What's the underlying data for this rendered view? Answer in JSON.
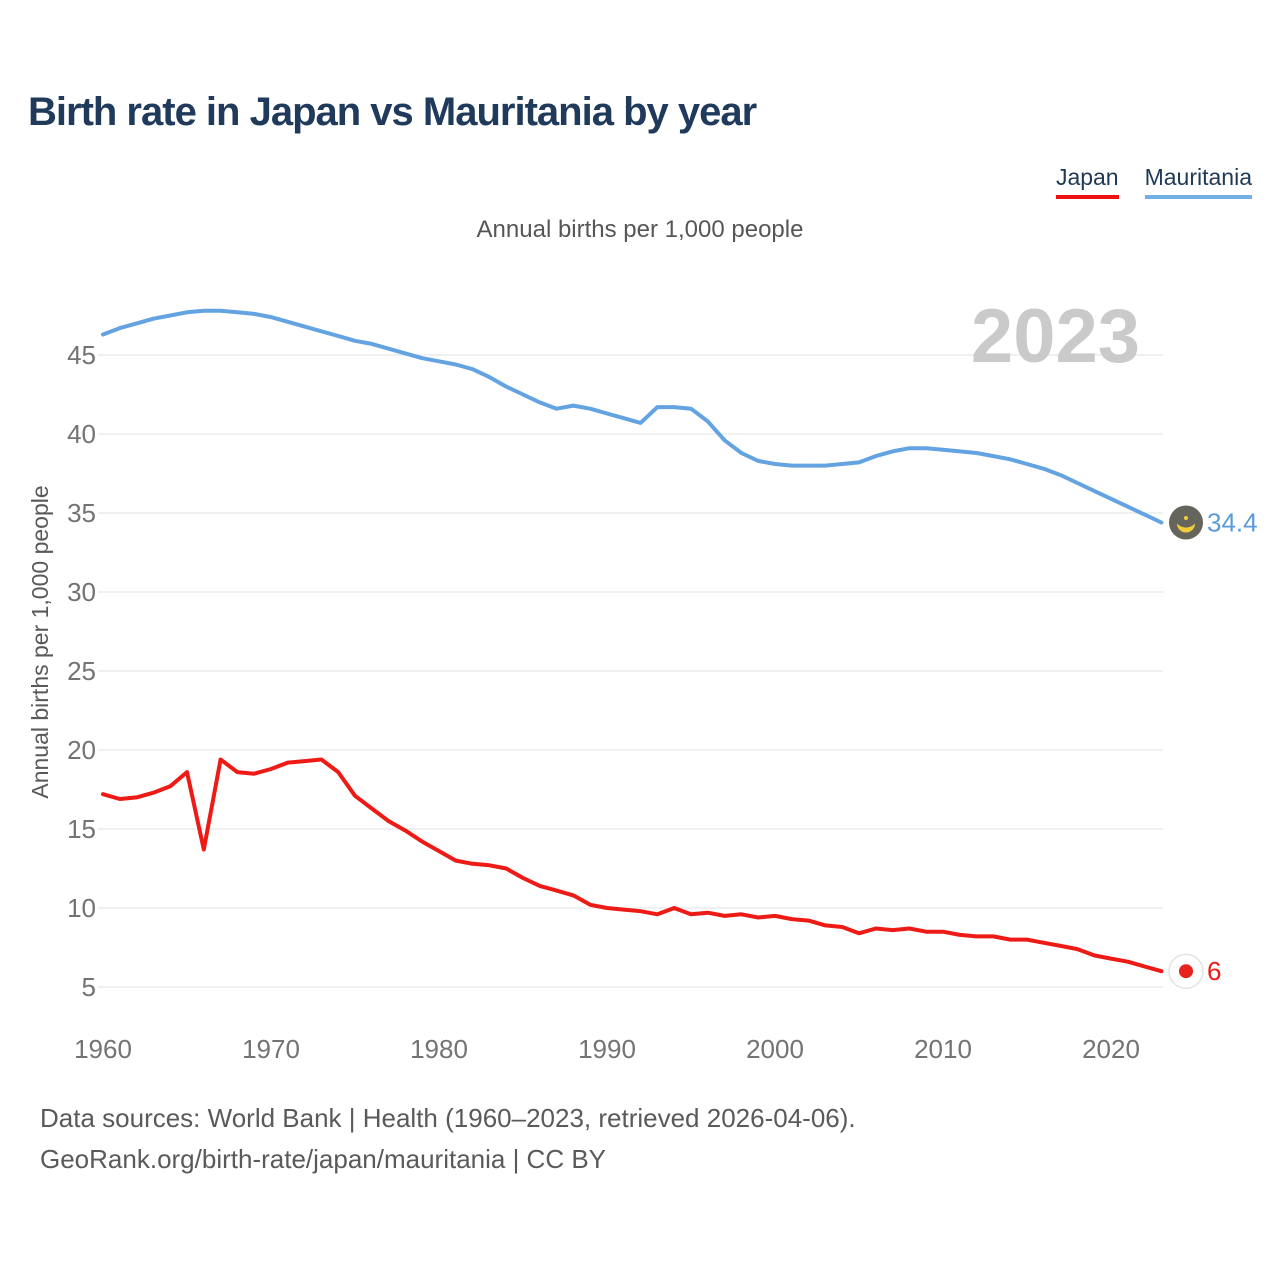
{
  "header": {
    "title": "Birth rate in Japan vs Mauritania by year",
    "subtitle": "Annual births per 1,000 people"
  },
  "legend": {
    "items": [
      {
        "label": "Japan",
        "underline_color": "#ee1111"
      },
      {
        "label": "Mauritania",
        "underline_color": "#74b0e6"
      }
    ]
  },
  "footer": {
    "line1": "Data sources: World Bank | Health (1960–2023, retrieved 2026-04-06).",
    "line2": "GeoRank.org/birth-rate/japan/mauritania | CC BY"
  },
  "chart_data": {
    "type": "line",
    "title": "Birth rate in Japan vs Mauritania by year",
    "subtitle": "Annual births per 1,000 people",
    "ylabel": "Annual births per 1,000 people",
    "watermark_year": "2023",
    "grid": "horizontal",
    "legend_position": "top-right",
    "x_ticks": [
      1960,
      1970,
      1980,
      1990,
      2000,
      2010,
      2020
    ],
    "y_ticks": [
      5,
      10,
      15,
      20,
      25,
      30,
      35,
      40,
      45
    ],
    "xlim": [
      1960,
      2023
    ],
    "ylim": [
      3.5,
      48.5
    ],
    "years": [
      1960,
      1961,
      1962,
      1963,
      1964,
      1965,
      1966,
      1967,
      1968,
      1969,
      1970,
      1971,
      1972,
      1973,
      1974,
      1975,
      1976,
      1977,
      1978,
      1979,
      1980,
      1981,
      1982,
      1983,
      1984,
      1985,
      1986,
      1987,
      1988,
      1989,
      1990,
      1991,
      1992,
      1993,
      1994,
      1995,
      1996,
      1997,
      1998,
      1999,
      2000,
      2001,
      2002,
      2003,
      2004,
      2005,
      2006,
      2007,
      2008,
      2009,
      2010,
      2011,
      2012,
      2013,
      2014,
      2015,
      2016,
      2017,
      2018,
      2019,
      2020,
      2021,
      2022,
      2023
    ],
    "series": [
      {
        "name": "Japan",
        "color": "#ee1a15",
        "end_label": "6",
        "end_label_color": "#ee1a15",
        "flag": {
          "bg": "#ffffff",
          "border": "#e3e3e3",
          "disc": "#e8231d"
        },
        "values": [
          17.2,
          16.9,
          17.0,
          17.3,
          17.7,
          18.6,
          13.7,
          19.4,
          18.6,
          18.5,
          18.8,
          19.2,
          19.3,
          19.4,
          18.6,
          17.1,
          16.3,
          15.5,
          14.9,
          14.2,
          13.6,
          13.0,
          12.8,
          12.7,
          12.5,
          11.9,
          11.4,
          11.1,
          10.8,
          10.2,
          10.0,
          9.9,
          9.8,
          9.6,
          10.0,
          9.6,
          9.7,
          9.5,
          9.6,
          9.4,
          9.5,
          9.3,
          9.2,
          8.9,
          8.8,
          8.4,
          8.7,
          8.6,
          8.7,
          8.5,
          8.5,
          8.3,
          8.2,
          8.2,
          8.0,
          8.0,
          7.8,
          7.6,
          7.4,
          7.0,
          6.8,
          6.6,
          6.3,
          6.0
        ]
      },
      {
        "name": "Mauritania",
        "color": "#64a3e1",
        "end_label": "34.4",
        "end_label_color": "#5b9bd8",
        "flag": {
          "bg": "#65655c",
          "crescent": "#f2cd3a"
        },
        "values": [
          46.3,
          46.7,
          47.0,
          47.3,
          47.5,
          47.7,
          47.8,
          47.8,
          47.7,
          47.6,
          47.4,
          47.1,
          46.8,
          46.5,
          46.2,
          45.9,
          45.7,
          45.4,
          45.1,
          44.8,
          44.6,
          44.4,
          44.1,
          43.6,
          43.0,
          42.5,
          42.0,
          41.6,
          41.8,
          41.6,
          41.3,
          41.0,
          40.7,
          41.7,
          41.7,
          41.6,
          40.8,
          39.6,
          38.8,
          38.3,
          38.1,
          38.0,
          38.0,
          38.0,
          38.1,
          38.2,
          38.6,
          38.9,
          39.1,
          39.1,
          39.0,
          38.9,
          38.8,
          38.6,
          38.4,
          38.1,
          37.8,
          37.4,
          36.9,
          36.4,
          35.9,
          35.4,
          34.9,
          34.4
        ]
      }
    ]
  }
}
